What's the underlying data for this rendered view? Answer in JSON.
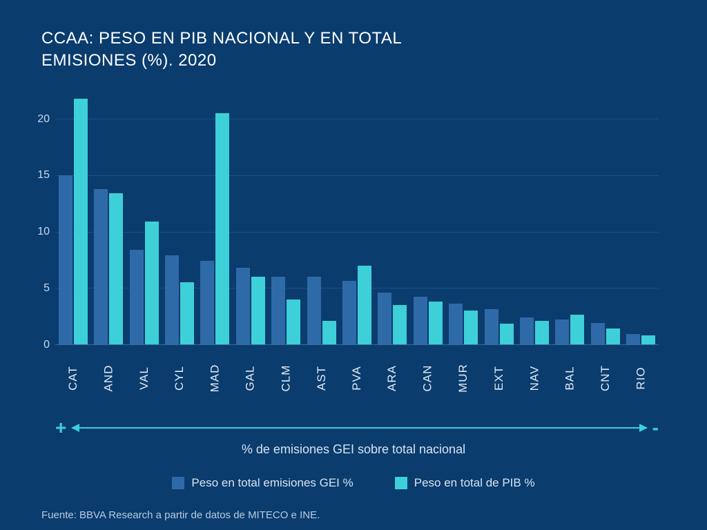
{
  "title_line1": "CCAA: PESO EN PIB NACIONAL Y EN TOTAL",
  "title_line2": "EMISIONES (%). 2020",
  "chart": {
    "type": "bar",
    "background_color": "#0a3c6e",
    "text_color": "#ffffff",
    "grid_color": "#1f4f82",
    "axis_color": "#3a6aa0",
    "ylim": [
      0,
      22
    ],
    "yticks": [
      0,
      5,
      10,
      15,
      20
    ],
    "y_fontsize": 16,
    "x_fontsize": 17,
    "x_rotation": -90,
    "categories": [
      "CAT",
      "AND",
      "VAL",
      "CYL",
      "MAD",
      "GAL",
      "CLM",
      "AST",
      "PVA",
      "ARA",
      "CAN",
      "MUR",
      "EXT",
      "NAV",
      "BAL",
      "CNT",
      "RIO"
    ],
    "series": [
      {
        "name": "Peso en total emisiones GEI %",
        "color": "#2f6aa8",
        "values": [
          15.0,
          13.8,
          8.4,
          7.9,
          7.4,
          6.8,
          6.0,
          6.0,
          5.6,
          4.6,
          4.2,
          3.6,
          3.1,
          2.4,
          2.2,
          1.9,
          0.9
        ]
      },
      {
        "name": "Peso en total de PIB %",
        "color": "#3dd0d8",
        "values": [
          21.8,
          13.4,
          10.9,
          5.5,
          20.5,
          6.0,
          4.0,
          2.1,
          7.0,
          3.5,
          3.8,
          3.0,
          1.8,
          2.1,
          2.6,
          1.4,
          0.8
        ]
      }
    ],
    "bar_gap": 2,
    "bar_width_pct": 40
  },
  "axis_arrow": {
    "plus": "+",
    "minus": "-",
    "color": "#3dd0d8",
    "caption": "% de emisiones GEI sobre total nacional",
    "caption_fontsize": 18
  },
  "legend": {
    "items": [
      {
        "label": "Peso en total emisiones GEI %",
        "color": "#2f6aa8"
      },
      {
        "label": "Peso en total de PIB %",
        "color": "#3dd0d8"
      }
    ],
    "fontsize": 17
  },
  "source": "Fuente: BBVA Research a partir de datos de MITECO e INE.",
  "source_fontsize": 15
}
